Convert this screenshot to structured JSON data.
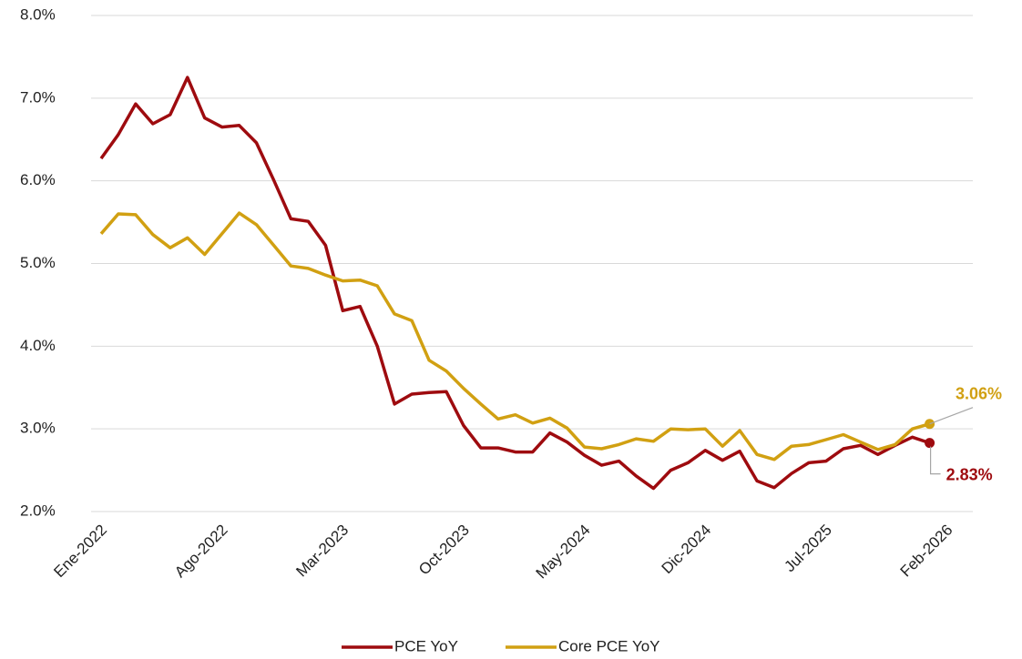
{
  "chart_data": {
    "type": "line",
    "categories": [
      "Ene-2022",
      null,
      null,
      null,
      null,
      null,
      null,
      "Ago-2022",
      null,
      null,
      null,
      null,
      null,
      null,
      "Mar-2023",
      null,
      null,
      null,
      null,
      null,
      null,
      "Oct-2023",
      null,
      null,
      null,
      null,
      null,
      null,
      "May-2024",
      null,
      null,
      null,
      null,
      null,
      null,
      "Dic-2024",
      null,
      null,
      null,
      null,
      null,
      null,
      "Jul-2025",
      null,
      null,
      null,
      null,
      null,
      null,
      "Feb-2026"
    ],
    "series": [
      {
        "name": "PCE YoY",
        "color": "#9e0b0f",
        "values": [
          6.27,
          6.56,
          6.93,
          6.69,
          6.8,
          7.25,
          6.76,
          6.65,
          6.67,
          6.46,
          6.01,
          5.54,
          5.51,
          5.22,
          4.43,
          4.48,
          4.0,
          3.3,
          3.42,
          3.44,
          3.45,
          3.04,
          2.77,
          2.77,
          2.72,
          2.72,
          2.95,
          2.84,
          2.68,
          2.56,
          2.61,
          2.43,
          2.28,
          2.5,
          2.59,
          2.74,
          2.62,
          2.73,
          2.37,
          2.29,
          2.46,
          2.59,
          2.61,
          2.76,
          2.8,
          2.69,
          2.8,
          2.9,
          2.83,
          null
        ],
        "value_labels": [
          null,
          null,
          null,
          null,
          null,
          null,
          null,
          null,
          null,
          null,
          null,
          null,
          null,
          null,
          null,
          null,
          null,
          null,
          null,
          null,
          null,
          null,
          null,
          null,
          null,
          null,
          null,
          null,
          null,
          null,
          null,
          null,
          null,
          null,
          null,
          null,
          null,
          null,
          null,
          null,
          null,
          null,
          null,
          null,
          null,
          null,
          null,
          null,
          "2.83%",
          null
        ]
      },
      {
        "name": "Core PCE YoY",
        "color": "#d1a012",
        "values": [
          5.36,
          5.6,
          5.59,
          5.35,
          5.19,
          5.31,
          5.11,
          5.36,
          5.61,
          5.47,
          5.22,
          4.97,
          4.94,
          4.86,
          4.79,
          4.8,
          4.73,
          4.39,
          4.31,
          3.83,
          3.7,
          3.49,
          3.3,
          3.12,
          3.17,
          3.07,
          3.13,
          3.01,
          2.78,
          2.76,
          2.81,
          2.88,
          2.85,
          3.0,
          2.99,
          3.0,
          2.79,
          2.98,
          2.69,
          2.63,
          2.79,
          2.81,
          2.87,
          2.93,
          2.84,
          2.75,
          2.81,
          3.0,
          3.06,
          null
        ],
        "value_labels": [
          null,
          null,
          null,
          null,
          null,
          null,
          null,
          null,
          null,
          null,
          null,
          null,
          null,
          null,
          null,
          null,
          null,
          null,
          null,
          null,
          null,
          null,
          null,
          null,
          null,
          null,
          null,
          null,
          null,
          null,
          null,
          null,
          null,
          null,
          null,
          null,
          null,
          null,
          null,
          null,
          null,
          null,
          null,
          null,
          null,
          null,
          null,
          null,
          "3.06%",
          null
        ]
      }
    ],
    "ylim": [
      2,
      8
    ],
    "yticks": [
      {
        "value": 2,
        "label": "2.0%"
      },
      {
        "value": 3,
        "label": "3.0%"
      },
      {
        "value": 4,
        "label": "4.0%"
      },
      {
        "value": 5,
        "label": "5.0%"
      },
      {
        "value": 6,
        "label": "6.0%"
      },
      {
        "value": 7,
        "label": "7.0%"
      },
      {
        "value": 8,
        "label": "8.0%"
      }
    ],
    "grid": true,
    "legend": "bottom"
  }
}
